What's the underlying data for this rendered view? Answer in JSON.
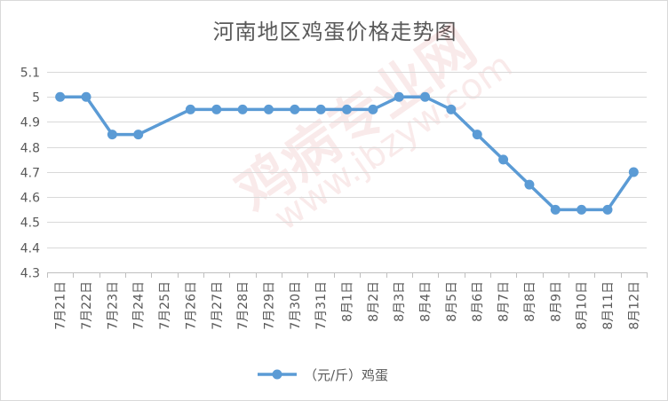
{
  "chart_data": {
    "type": "line",
    "title": "河南地区鸡蛋价格走势图",
    "categories": [
      "7月21日",
      "7月22日",
      "7月23日",
      "7月24日",
      "7月25日",
      "7月26日",
      "7月27日",
      "7月28日",
      "7月29日",
      "7月30日",
      "7月31日",
      "8月1日",
      "8月2日",
      "8月3日",
      "8月4日",
      "8月5日",
      "8月6日",
      "8月7日",
      "8月8日",
      "8月9日",
      "8月10日",
      "8月11日",
      "8月12日"
    ],
    "series": [
      {
        "name": "（元/斤）鸡蛋",
        "color": "#5b9bd5",
        "values": [
          5,
          5,
          4.85,
          4.85,
          null,
          4.95,
          4.95,
          4.95,
          4.95,
          4.95,
          4.95,
          4.95,
          4.95,
          5,
          5,
          4.95,
          4.85,
          4.75,
          4.65,
          4.55,
          4.55,
          4.55,
          4.7
        ]
      }
    ],
    "ylim": [
      4.3,
      5.1
    ],
    "yticks": [
      "4.3",
      "4.4",
      "4.5",
      "4.6",
      "4.7",
      "4.8",
      "4.9",
      "5",
      "5.1"
    ],
    "grid": true,
    "legend": "bottom",
    "xlabel": "",
    "ylabel": ""
  },
  "watermark": {
    "brand": "鸡病专业网",
    "url": "www.jbzyw.com"
  }
}
